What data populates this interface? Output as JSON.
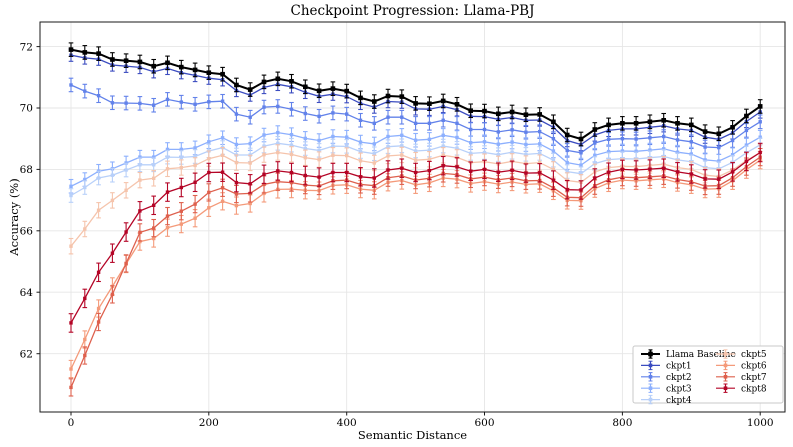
{
  "figure": {
    "background": "#ffffff"
  },
  "chart_data": {
    "type": "line",
    "title": "Checkpoint Progression: Llama-PBJ",
    "xlabel": "Semantic Distance",
    "ylabel": "Accuracy (%)",
    "xlim": [
      -45,
      1036
    ],
    "ylim": [
      60.1,
      72.8
    ],
    "x_ticks": [
      0,
      200,
      400,
      600,
      800,
      1000
    ],
    "y_ticks": [
      62,
      64,
      66,
      68,
      70,
      72
    ],
    "grid": true,
    "grid_color": "#e6e6e6",
    "error_bars": true,
    "legend": {
      "position": "lower right",
      "columns": 2,
      "frame": true
    },
    "x": [
      0,
      20,
      40,
      60,
      80,
      100,
      120,
      140,
      160,
      180,
      200,
      220,
      240,
      260,
      280,
      300,
      320,
      340,
      360,
      380,
      400,
      420,
      440,
      460,
      480,
      500,
      520,
      540,
      560,
      580,
      600,
      620,
      640,
      660,
      680,
      700,
      720,
      740,
      760,
      780,
      800,
      820,
      840,
      860,
      880,
      900,
      920,
      940,
      960,
      980,
      1000
    ],
    "series": [
      {
        "name": "Llama Baseline",
        "color": "#000000",
        "line_width": 2.0,
        "err": 0.22,
        "values": [
          71.9,
          71.81,
          71.77,
          71.58,
          71.54,
          71.5,
          71.36,
          71.47,
          71.33,
          71.24,
          71.15,
          71.1,
          70.75,
          70.6,
          70.85,
          70.95,
          70.87,
          70.69,
          70.56,
          70.63,
          70.55,
          70.33,
          70.21,
          70.39,
          70.37,
          70.15,
          70.14,
          70.23,
          70.12,
          69.91,
          69.9,
          69.81,
          69.87,
          69.78,
          69.79,
          69.55,
          69.12,
          68.99,
          69.3,
          69.45,
          69.5,
          69.5,
          69.55,
          69.6,
          69.5,
          69.45,
          69.23,
          69.16,
          69.37,
          69.74,
          70.05
        ]
      },
      {
        "name": "ckpt1",
        "color": "#3b4cc0",
        "line_width": 1.3,
        "err": 0.2,
        "values": [
          71.72,
          71.63,
          71.59,
          71.4,
          71.36,
          71.32,
          71.18,
          71.29,
          71.15,
          71.06,
          70.97,
          70.92,
          70.57,
          70.42,
          70.67,
          70.77,
          70.69,
          70.51,
          70.38,
          70.45,
          70.37,
          70.15,
          70.03,
          70.21,
          70.19,
          69.97,
          69.96,
          70.05,
          69.94,
          69.73,
          69.72,
          69.63,
          69.69,
          69.6,
          69.61,
          69.37,
          68.94,
          68.81,
          69.12,
          69.27,
          69.32,
          69.32,
          69.37,
          69.42,
          69.32,
          69.27,
          69.05,
          68.98,
          69.19,
          69.56,
          69.87
        ]
      },
      {
        "name": "ckpt2",
        "color": "#6282ea",
        "line_width": 1.3,
        "err": 0.22,
        "values": [
          70.75,
          70.55,
          70.4,
          70.17,
          70.16,
          70.15,
          70.09,
          70.28,
          70.19,
          70.12,
          70.2,
          70.22,
          69.8,
          69.7,
          70.03,
          70.05,
          69.96,
          69.82,
          69.73,
          69.84,
          69.8,
          69.6,
          69.5,
          69.7,
          69.7,
          69.5,
          69.5,
          69.6,
          69.5,
          69.3,
          69.3,
          69.22,
          69.29,
          69.21,
          69.23,
          69.0,
          68.62,
          68.54,
          68.86,
          68.98,
          69.0,
          68.99,
          69.03,
          69.07,
          68.96,
          68.9,
          68.73,
          68.71,
          68.94,
          69.27,
          69.55
        ]
      },
      {
        "name": "ckpt3",
        "color": "#8db0fe",
        "line_width": 1.3,
        "err": 0.22,
        "values": [
          67.45,
          67.67,
          67.94,
          68.02,
          68.21,
          68.4,
          68.4,
          68.65,
          68.65,
          68.7,
          68.9,
          69.03,
          68.81,
          68.84,
          69.12,
          69.2,
          69.13,
          69.01,
          68.94,
          69.07,
          69.05,
          68.89,
          68.83,
          69.07,
          69.11,
          68.95,
          68.98,
          69.11,
          69.04,
          68.87,
          68.9,
          68.82,
          68.89,
          68.81,
          68.83,
          68.6,
          68.22,
          68.14,
          68.46,
          68.58,
          68.6,
          68.59,
          68.63,
          68.67,
          68.56,
          68.5,
          68.31,
          68.27,
          68.48,
          68.79,
          69.05
        ]
      },
      {
        "name": "ckpt4",
        "color": "#b8d0f9",
        "line_width": 1.3,
        "err": 0.22,
        "values": [
          67.15,
          67.41,
          67.72,
          67.81,
          67.98,
          68.15,
          68.15,
          68.4,
          68.39,
          68.42,
          68.6,
          68.71,
          68.47,
          68.47,
          68.76,
          68.85,
          68.79,
          68.68,
          68.62,
          68.76,
          68.75,
          68.58,
          68.51,
          68.74,
          68.77,
          68.6,
          68.63,
          68.76,
          68.69,
          68.52,
          68.55,
          68.48,
          68.56,
          68.49,
          68.52,
          68.3,
          67.93,
          67.86,
          68.19,
          68.32,
          68.35,
          68.34,
          68.38,
          68.42,
          68.31,
          68.25,
          68.06,
          68.02,
          68.23,
          68.54,
          68.8
        ]
      },
      {
        "name": "ckpt5",
        "color": "#f5c4ac",
        "line_width": 1.3,
        "err": 0.25,
        "values": [
          65.5,
          66.06,
          66.67,
          66.99,
          67.32,
          67.65,
          67.71,
          68.02,
          68.06,
          68.13,
          68.35,
          68.46,
          68.22,
          68.21,
          68.48,
          68.55,
          68.49,
          68.38,
          68.32,
          68.46,
          68.45,
          68.28,
          68.21,
          68.44,
          68.47,
          68.3,
          68.33,
          68.46,
          68.39,
          68.22,
          68.25,
          68.18,
          68.26,
          68.19,
          68.22,
          68.0,
          67.64,
          67.58,
          67.92,
          68.06,
          68.1,
          68.09,
          68.13,
          68.17,
          68.06,
          68.0,
          67.81,
          67.77,
          67.98,
          68.29,
          68.55
        ]
      },
      {
        "name": "ckpt6",
        "color": "#f49a7a",
        "line_width": 1.3,
        "err": 0.28,
        "values": [
          61.5,
          62.46,
          63.47,
          64.19,
          64.92,
          65.65,
          65.75,
          66.1,
          66.22,
          66.41,
          66.75,
          66.96,
          66.82,
          66.89,
          67.22,
          67.35,
          67.36,
          67.32,
          67.31,
          67.48,
          67.5,
          67.36,
          67.32,
          67.58,
          67.64,
          67.5,
          67.56,
          67.72,
          67.68,
          67.54,
          67.6,
          67.52,
          67.59,
          67.51,
          67.53,
          67.3,
          66.99,
          66.98,
          67.37,
          67.56,
          67.65,
          67.63,
          67.66,
          67.69,
          67.57,
          67.5,
          67.36,
          67.37,
          67.63,
          67.99,
          68.3
        ]
      },
      {
        "name": "ckpt7",
        "color": "#de604d",
        "line_width": 1.3,
        "err": 0.28,
        "values": [
          60.9,
          61.94,
          63.03,
          63.93,
          64.94,
          65.95,
          66.09,
          66.48,
          66.64,
          66.87,
          67.25,
          67.4,
          67.2,
          67.22,
          67.51,
          67.6,
          67.57,
          67.49,
          67.46,
          67.63,
          67.65,
          67.51,
          67.47,
          67.73,
          67.79,
          67.65,
          67.71,
          67.87,
          67.83,
          67.69,
          67.75,
          67.66,
          67.72,
          67.63,
          67.64,
          67.4,
          67.09,
          67.08,
          67.47,
          67.66,
          67.75,
          67.73,
          67.76,
          67.79,
          67.67,
          67.6,
          67.46,
          67.47,
          67.73,
          68.09,
          68.4
        ]
      },
      {
        "name": "ckpt8",
        "color": "#b40426",
        "line_width": 1.3,
        "err": 0.3,
        "values": [
          63.0,
          63.8,
          64.65,
          65.27,
          65.96,
          66.65,
          66.83,
          67.26,
          67.41,
          67.58,
          67.9,
          67.91,
          67.57,
          67.53,
          67.84,
          67.95,
          67.9,
          67.8,
          67.75,
          67.9,
          67.9,
          67.76,
          67.72,
          67.98,
          68.04,
          67.9,
          67.96,
          68.12,
          68.08,
          67.94,
          68.0,
          67.91,
          67.97,
          67.88,
          67.89,
          67.65,
          67.34,
          67.33,
          67.72,
          67.91,
          68.0,
          67.98,
          68.01,
          68.04,
          67.92,
          67.85,
          67.69,
          67.68,
          67.92,
          68.26,
          68.55
        ]
      }
    ]
  }
}
